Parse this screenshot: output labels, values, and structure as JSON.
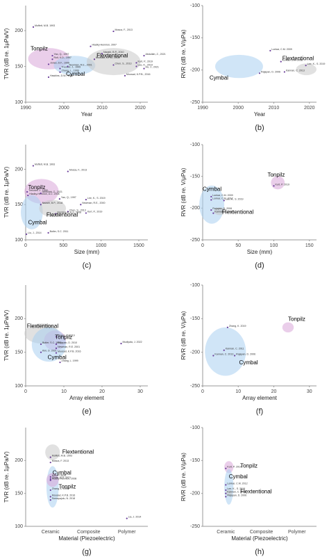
{
  "chart_data": [
    {
      "type": "scatter",
      "caption": "(a)",
      "xlabel": "Year",
      "ylabel": "TVR (dB re. 1μPa/V)",
      "xlim": [
        1990,
        2022
      ],
      "ylim": [
        100,
        235
      ],
      "xticks": [
        1990,
        2000,
        2010,
        2020
      ],
      "yticks": [
        100,
        150,
        200
      ],
      "point_color": "#6a3d9a",
      "groups": [
        {
          "name": "Tonpilz",
          "color": "#d9a6d9"
        },
        {
          "name": "Cymbal",
          "color": "#a9d0f0"
        },
        {
          "name": "Flextentional",
          "color": "#c8c8c8"
        }
      ],
      "points": [
        {
          "label": "Moffett, M.B. 1993",
          "x": 1992,
          "y": 205
        },
        {
          "label": "Mosca, F., 2013",
          "x": 2013,
          "y": 199
        },
        {
          "label": "Hladky-Hennion, 2007",
          "x": 2007,
          "y": 178
        },
        {
          "label": "Yao, Q., 1997",
          "x": 1997,
          "y": 165
        },
        {
          "label": "Rolt, K.D., 1997",
          "x": 1997,
          "y": 160
        },
        {
          "label": "Jones, D.F., 1996",
          "x": 1996,
          "y": 153
        },
        {
          "label": "Trecolet, J., 1999",
          "x": 1999,
          "y": 147
        },
        {
          "label": "Zhang, L., 1999",
          "x": 1999,
          "y": 142
        },
        {
          "label": "Hawkins, D.W., 1996",
          "x": 1996,
          "y": 135
        },
        {
          "label": "Newman, R.E., 2001",
          "x": 2001,
          "y": 150
        },
        {
          "label": "Moosad, K.P.B., 2008",
          "x": 2008,
          "y": 160
        },
        {
          "label": "Chen, S., 2013",
          "x": 2013,
          "y": 152
        },
        {
          "label": "Naoshi, B.P., 2010",
          "x": 2010,
          "y": 168
        },
        {
          "label": "Abdullah, Z., 2021",
          "x": 2021,
          "y": 165
        },
        {
          "label": "Lee, K., 2019",
          "x": 2019,
          "y": 150
        },
        {
          "label": "Moosad, K.P.B., 2016",
          "x": 2016,
          "y": 137
        },
        {
          "label": "Hu, J., 2021",
          "x": 2021,
          "y": 147
        },
        {
          "label": "Kurt, P., 2019",
          "x": 2019,
          "y": 155
        }
      ]
    },
    {
      "type": "scatter",
      "caption": "(b)",
      "xlabel": "Year",
      "ylabel": "RVR (dB re. V/μPa)",
      "xlim": [
        1990,
        2022
      ],
      "ylim": [
        -250,
        -100
      ],
      "xticks": [
        1990,
        2000,
        2010,
        2020
      ],
      "yticks": [
        -250,
        -200,
        -150,
        -100
      ],
      "point_color": "#6a3d9a",
      "groups": [
        {
          "name": "Cymbal",
          "color": "#a9d0f0"
        },
        {
          "name": "Flextentional",
          "color": "#c8c8c8"
        }
      ],
      "points": [
        {
          "label": "Lonkar, C.M. 2009",
          "x": 2009,
          "y": -170
        },
        {
          "label": "Lonkar, C.M. 2012",
          "x": 2012,
          "y": -187
        },
        {
          "label": "Kannan, C. 2013",
          "x": 2013,
          "y": -203
        },
        {
          "label": "Rajapan, D. 2006",
          "x": 2006,
          "y": -205
        },
        {
          "label": "Lee, K., S. 2019",
          "x": 2019,
          "y": -193
        }
      ]
    },
    {
      "type": "scatter",
      "caption": "(c)",
      "xlabel": "Size (mm)",
      "ylabel": "TVR (dB re. 1μPa/V)",
      "xlim": [
        0,
        1620
      ],
      "ylim": [
        100,
        235
      ],
      "xticks": [
        0,
        500,
        1000,
        1500
      ],
      "yticks": [
        100,
        150,
        200
      ],
      "point_color": "#6a3d9a",
      "groups": [
        {
          "name": "Tonpilz",
          "color": "#d9a6d9"
        },
        {
          "name": "Cymbal",
          "color": "#a9d0f0"
        },
        {
          "name": "Flextentional",
          "color": "#c8c8c8"
        }
      ],
      "points": [
        {
          "label": "Moffett, M.B. 1993",
          "x": 100,
          "y": 205
        },
        {
          "label": "Mosca, F., 2013",
          "x": 560,
          "y": 197
        },
        {
          "label": "Trecolet, J., 1999",
          "x": 20,
          "y": 168
        },
        {
          "label": "Hladky-Hennion, A.C. 2008",
          "x": 30,
          "y": 163
        },
        {
          "label": "Abdullah, Z., 2021",
          "x": 200,
          "y": 166
        },
        {
          "label": "Yao, Q., 1997",
          "x": 450,
          "y": 158
        },
        {
          "label": "Lee, K., S. 2019",
          "x": 800,
          "y": 157
        },
        {
          "label": "Naoshi, B.P., 2018",
          "x": 200,
          "y": 150
        },
        {
          "label": "Newman, R.E., 2000",
          "x": 730,
          "y": 150
        },
        {
          "label": "Chen, S., 2013",
          "x": 560,
          "y": 140
        },
        {
          "label": "Kurt, P., 2019",
          "x": 800,
          "y": 138
        },
        {
          "label": "Fleming, R.A.G. 2008",
          "x": 400,
          "y": 137
        },
        {
          "label": "Butler, S.C. 2011",
          "x": 300,
          "y": 110
        },
        {
          "label": "Liu, J., 2014",
          "x": 10,
          "y": 108
        }
      ]
    },
    {
      "type": "scatter",
      "caption": "(d)",
      "xlabel": "Size (mm)",
      "ylabel": "RVR (dB re. V/μPa)",
      "xlim": [
        0,
        160
      ],
      "ylim": [
        -250,
        -100
      ],
      "xticks": [
        0,
        50,
        100,
        150
      ],
      "yticks": [
        -250,
        -200,
        -150,
        -100
      ],
      "point_color": "#6a3d9a",
      "groups": [
        {
          "name": "Tonpilz",
          "color": "#d9a6d9"
        },
        {
          "name": "Cymbal",
          "color": "#a9d0f0"
        },
        {
          "name": "Flextentional",
          "color": "#c8c8c8"
        }
      ],
      "points": [
        {
          "label": "Kurt, P. 2019",
          "x": 100,
          "y": -165
        },
        {
          "label": "Lonkar, C.M. 2009",
          "x": 12,
          "y": -182
        },
        {
          "label": "Lonkar, C.M. 2012",
          "x": 12,
          "y": -187
        },
        {
          "label": "Lee, K., S. 2019",
          "x": 30,
          "y": -188
        },
        {
          "label": "Rajapan, D. 2006",
          "x": 12,
          "y": -203
        },
        {
          "label": "Kannan, C. 2011",
          "x": 15,
          "y": -208
        }
      ]
    },
    {
      "type": "scatter",
      "caption": "(e)",
      "xlabel": "Array element",
      "ylabel": "TVR (dB re. 1μPa/V)",
      "xlim": [
        0,
        32
      ],
      "ylim": [
        100,
        250
      ],
      "xticks": [
        0,
        10,
        20,
        30
      ],
      "yticks": [
        100,
        150,
        200
      ],
      "point_color": "#6a3d9a",
      "groups": [
        {
          "name": "Flextentional",
          "color": "#c8c8c8"
        },
        {
          "name": "Tonpilz",
          "color": "#d9a6d9"
        },
        {
          "name": "Cymbal",
          "color": "#a9d0f0"
        }
      ],
      "points": [
        {
          "label": "Zhang, K. 2019",
          "x": 8,
          "y": 173
        },
        {
          "label": "Butler, S.C. 1997",
          "x": 4,
          "y": 162
        },
        {
          "label": "Rajapan, D. 2010",
          "x": 8,
          "y": 162
        },
        {
          "label": "Newman, R.E. 2001",
          "x": 8,
          "y": 156
        },
        {
          "label": "Kim, D. 2021",
          "x": 4,
          "y": 150
        },
        {
          "label": "Moosad, K.P.B. 2016",
          "x": 8,
          "y": 149
        },
        {
          "label": "Zhang, L. 1999",
          "x": 9,
          "y": 135
        },
        {
          "label": "Mudiyala, J. 2022",
          "x": 25,
          "y": 163
        }
      ]
    },
    {
      "type": "scatter",
      "caption": "(f)",
      "xlabel": "Array element",
      "ylabel": "RVR (dB re. V/μPa)",
      "xlim": [
        0,
        32
      ],
      "ylim": [
        -250,
        -100
      ],
      "xticks": [
        0,
        10,
        20,
        30
      ],
      "yticks": [
        -250,
        -200,
        -150,
        -100
      ],
      "point_color": "#6a3d9a",
      "groups": [
        {
          "name": "Tonpilz",
          "color": "#d9a6d9"
        },
        {
          "name": "Cymbal",
          "color": "#a9d0f0"
        }
      ],
      "points": [
        {
          "label": "Zhang, K. 2019",
          "x": 7,
          "y": -163
        },
        {
          "label": "Kannan, C. 2011",
          "x": 6,
          "y": -197
        },
        {
          "label": "Kannan, C. 2013",
          "x": 3,
          "y": -205
        },
        {
          "label": "Rajapan, D. 2006",
          "x": 9,
          "y": -205
        }
      ]
    },
    {
      "type": "scatter",
      "caption": "(g)",
      "xlabel": "Material (Piezoelectric)",
      "ylabel": "TVR (dB re. 1μPa/V)",
      "categories": [
        "Ceramic",
        "Composite",
        "Polymer"
      ],
      "ylim": [
        100,
        250
      ],
      "yticks": [
        100,
        150,
        200
      ],
      "point_color": "#6a3d9a",
      "groups": [
        {
          "name": "Flextentional",
          "color": "#c8c8c8"
        },
        {
          "name": "Cymbal",
          "color": "#a9d0f0"
        },
        {
          "name": "Tonpilz",
          "color": "#d9a6d9"
        }
      ],
      "points": [
        {
          "label": "Moffett, M.B. 1993",
          "x": "Ceramic",
          "y": 205
        },
        {
          "label": "Mosca, F. 2013",
          "x": "Ceramic",
          "y": 197
        },
        {
          "label": "Kurt, P. 2019",
          "x": "Ceramic",
          "y": 175
        },
        {
          "label": "Hladky-Hennion, 2008",
          "x": "Ceramic",
          "y": 170
        },
        {
          "label": "Chow, M.S. 2021",
          "x": "Ceramic",
          "y": 172
        },
        {
          "label": "Zhang, L. 1999",
          "x": "Ceramic",
          "y": 155
        },
        {
          "label": "Moosad, K.P.B. 2016",
          "x": "Ceramic",
          "y": 145
        },
        {
          "label": "Somayajulu, N. 2018",
          "x": "Ceramic",
          "y": 140
        },
        {
          "label": "Liu, J. 2014",
          "x": "Polymer",
          "y": 112
        }
      ]
    },
    {
      "type": "scatter",
      "caption": "(h)",
      "xlabel": "Material (Piezoelectric)",
      "ylabel": "RVR (dB re. V/μPa)",
      "categories": [
        "Ceramic",
        "Composite",
        "Polymer"
      ],
      "ylim": [
        -250,
        -100
      ],
      "yticks": [
        -250,
        -200,
        -150,
        -100
      ],
      "point_color": "#6a3d9a",
      "groups": [
        {
          "name": "Tonpilz",
          "color": "#d9a6d9"
        },
        {
          "name": "Cymbal",
          "color": "#a9d0f0"
        },
        {
          "name": "Flextentional",
          "color": "#c8c8c8"
        }
      ],
      "points": [
        {
          "label": "Kurt, P. 2019",
          "x": "Ceramic",
          "y": -162
        },
        {
          "label": "Lonkar, C.M. 2012",
          "x": "Ceramic",
          "y": -187
        },
        {
          "label": "Lee, K., S. 2019",
          "x": "Ceramic",
          "y": -195
        },
        {
          "label": "Kannan, C. 2011",
          "x": "Ceramic",
          "y": -200
        },
        {
          "label": "Rajapan, D. 2006",
          "x": "Ceramic",
          "y": -205
        }
      ]
    }
  ]
}
